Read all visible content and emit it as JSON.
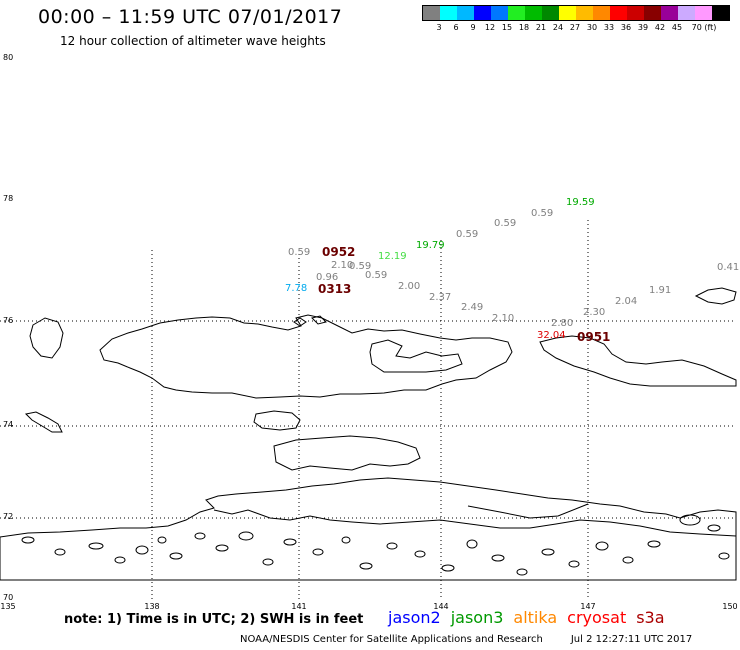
{
  "header": {
    "title": "00:00 – 11:59 UTC 07/01/2017",
    "subtitle": "12 hour collection of altimeter wave heights"
  },
  "scale": {
    "colors": [
      "#808080",
      "#00ffff",
      "#00b8ff",
      "#0000ff",
      "#0077ff",
      "#22ee22",
      "#00bb00",
      "#008800",
      "#ffff00",
      "#ffbb00",
      "#ff8800",
      "#ff0000",
      "#cc0000",
      "#880000",
      "#990099",
      "#ccaaff",
      "#ff99ff",
      "#000000"
    ],
    "labels": [
      "3",
      "6",
      "9",
      "12",
      "15",
      "18",
      "21",
      "24",
      "27",
      "30",
      "33",
      "36",
      "39",
      "42",
      "45",
      "70 (ft)"
    ]
  },
  "axes": {
    "lat": [
      "80",
      "78",
      "76",
      "74",
      "72",
      "70"
    ],
    "lon": [
      "135",
      "138",
      "141",
      "144",
      "147",
      "150"
    ]
  },
  "wave_labels": [
    {
      "text": "19.59",
      "color": "#00aa00"
    },
    {
      "text": "0.59",
      "color": "#808080"
    },
    {
      "text": "0.59",
      "color": "#808080"
    },
    {
      "text": "0.59",
      "color": "#808080"
    },
    {
      "text": "19.79",
      "color": "#00aa00"
    },
    {
      "text": "0.59",
      "color": "#808080"
    },
    {
      "text": "12.19",
      "color": "#44dd44"
    },
    {
      "text": "2.10",
      "color": "#808080"
    },
    {
      "text": "0.59",
      "color": "#808080"
    },
    {
      "text": "0.96",
      "color": "#808080"
    },
    {
      "text": "0.59",
      "color": "#808080"
    },
    {
      "text": "2.00",
      "color": "#808080"
    },
    {
      "text": "7.78",
      "color": "#00aaee"
    },
    {
      "text": "2.37",
      "color": "#808080"
    },
    {
      "text": "2.49",
      "color": "#808080"
    },
    {
      "text": "2.10",
      "color": "#808080"
    },
    {
      "text": "2.80",
      "color": "#808080"
    },
    {
      "text": "2.30",
      "color": "#808080"
    },
    {
      "text": "2.04",
      "color": "#808080"
    },
    {
      "text": "1.91",
      "color": "#808080"
    },
    {
      "text": "0.41",
      "color": "#808080"
    },
    {
      "text": "32.04",
      "color": "#dd0000"
    }
  ],
  "pass_times": [
    "0952",
    "0313",
    "0951"
  ],
  "note": "note: 1) Time is in UTC; 2) SWH is in feet",
  "legend": [
    {
      "name": "jason2",
      "color": "#0000ff"
    },
    {
      "name": "jason3",
      "color": "#009900"
    },
    {
      "name": "altika",
      "color": "#ff8800"
    },
    {
      "name": "cryosat",
      "color": "#ff0000"
    },
    {
      "name": "s3a",
      "color": "#aa0000"
    }
  ],
  "footer": {
    "center": "NOAA/NESDIS Center for Satellite Applications and Research",
    "timestamp": "Jul  2 12:27:11 UTC 2017"
  }
}
